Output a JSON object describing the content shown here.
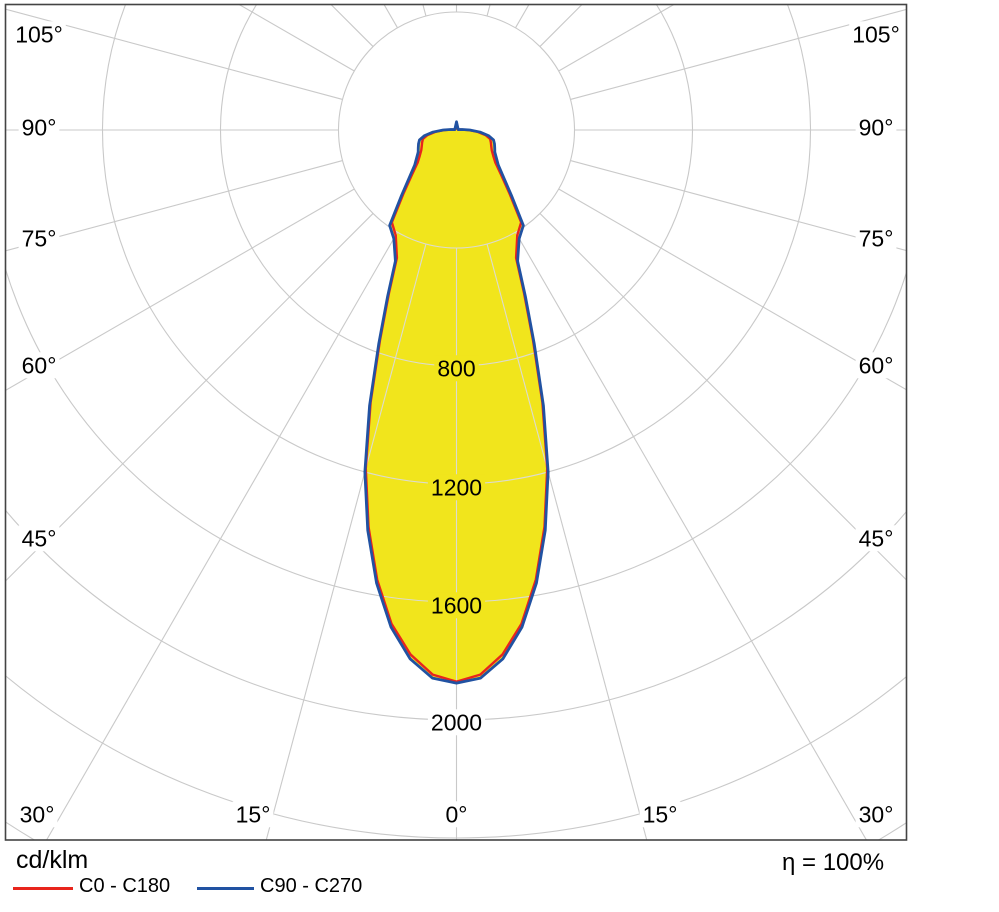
{
  "footer": {
    "unit_label": "cd/klm",
    "efficiency_label": "η = 100%"
  },
  "chart_data": {
    "type": "polar",
    "description": "Luminous intensity distribution polar diagram, 0° axis pointing down",
    "unit": "cd/klm",
    "efficiency": "η = 100%",
    "grid_on": true,
    "grid_color": "#c9c9c9",
    "fill_color": "#f1e51c",
    "inner_grid_color": "#dcdbd0",
    "border_color": "#444444",
    "radial_rings_cd": [
      400,
      800,
      1200,
      1600,
      2000,
      2400,
      2800
    ],
    "radial_tick_labels": [
      "800",
      "1200",
      "1600",
      "2000"
    ],
    "radial_tick_values": [
      800,
      1200,
      1600,
      2000
    ],
    "angle_step_deg": 15,
    "angle_labels_left": [
      "105°",
      "90°",
      "75°",
      "60°",
      "45°"
    ],
    "angle_labels_right": [
      "105°",
      "90°",
      "75°",
      "60°",
      "45°"
    ],
    "angle_labels_bottom": [
      "30°",
      "15°",
      "0°",
      "15°",
      "30°"
    ],
    "legend_position": "bottom-left",
    "series": [
      {
        "name": "C0 - C180",
        "color": "#e8251d",
        "angles_deg": [
          0,
          2.5,
          5,
          7.5,
          10,
          12.5,
          15,
          17.5,
          20,
          22.5,
          25,
          30,
          35,
          40,
          45,
          50,
          55,
          60,
          65,
          70,
          75,
          80,
          85,
          90,
          95,
          105,
          180
        ],
        "values_cd_per_klm": [
          1870,
          1848,
          1785,
          1688,
          1548,
          1378,
          1188,
          968,
          758,
          598,
          478,
          412,
          382,
          278,
          213,
          172,
          152,
          138,
          130,
          124,
          118,
          100,
          72,
          40,
          17,
          5,
          24
        ]
      },
      {
        "name": "C90 - C270",
        "color": "#2152a2",
        "angles_deg": [
          0,
          2.5,
          5,
          7.5,
          10,
          12.5,
          15,
          17.5,
          20,
          22.5,
          25,
          30,
          35,
          40,
          45,
          50,
          55,
          60,
          65,
          70,
          75,
          80,
          85,
          90,
          95,
          105,
          180
        ],
        "values_cd_per_klm": [
          1875,
          1860,
          1800,
          1700,
          1560,
          1390,
          1200,
          980,
          770,
          610,
          490,
          425,
          395,
          290,
          225,
          185,
          165,
          150,
          143,
          137,
          130,
          110,
          80,
          45,
          20,
          6,
          28
        ]
      }
    ],
    "peak_intensity_cd_per_klm": 1875,
    "ring_spacing_cd": 400
  }
}
